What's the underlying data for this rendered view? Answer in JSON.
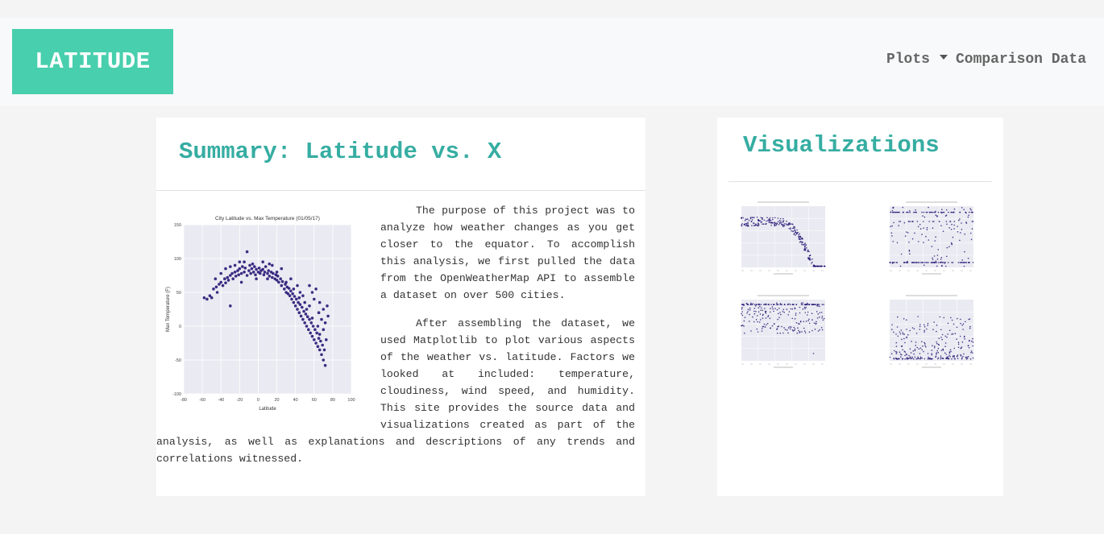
{
  "navbar": {
    "brand": "LATITUDE",
    "plots_label": "Plots",
    "comparison_label": "Comparison Data"
  },
  "summary": {
    "title": "Summary: Latitude vs. X",
    "paragraphs": [
      "The purpose of this project was to analyze how weather changes as you get closer to the equator. To accomplish this analysis, we first pulled the data from the OpenWeatherMap API to assemble a dataset on over 500 cities.",
      "After assembling the dataset, we used Matplotlib to plot various aspects of the weather vs. latitude. Factors we looked at included: temperature, cloudiness, wind speed, and humidity. This site provides the source data and visualizations created as part of the analysis, as well as explanations and descriptions of any trends and correlations witnessed."
    ]
  },
  "visualizations": {
    "title": "Visualizations"
  },
  "colors": {
    "brand": "#48cfad",
    "title": "#36ada2",
    "point": "#1c0a6e",
    "plot_bg": "#eaeaf2"
  },
  "chart_data": {
    "type": "scatter",
    "title": "City Latitude vs. Max Temperature (01/05/17)",
    "xlabel": "Latitude",
    "ylabel": "Max Temperature (F)",
    "xlim": [
      -80,
      100
    ],
    "ylim": [
      -100,
      150
    ],
    "xticks": [
      -80,
      -60,
      -40,
      -20,
      0,
      20,
      40,
      60,
      80,
      100
    ],
    "yticks": [
      -100,
      -50,
      0,
      50,
      100,
      150
    ],
    "points": [
      [
        -55,
        40
      ],
      [
        -52,
        45
      ],
      [
        -50,
        42
      ],
      [
        -48,
        55
      ],
      [
        -45,
        58
      ],
      [
        -44,
        50
      ],
      [
        -42,
        62
      ],
      [
        -40,
        65
      ],
      [
        -38,
        60
      ],
      [
        -36,
        70
      ],
      [
        -35,
        64
      ],
      [
        -33,
        72
      ],
      [
        -32,
        68
      ],
      [
        -30,
        75
      ],
      [
        -30,
        30
      ],
      [
        -28,
        78
      ],
      [
        -27,
        70
      ],
      [
        -25,
        80
      ],
      [
        -24,
        74
      ],
      [
        -22,
        82
      ],
      [
        -21,
        76
      ],
      [
        -20,
        85
      ],
      [
        -20,
        95
      ],
      [
        -18,
        78
      ],
      [
        -17,
        88
      ],
      [
        -15,
        80
      ],
      [
        -14,
        86
      ],
      [
        -12,
        75
      ],
      [
        -12,
        110
      ],
      [
        -10,
        82
      ],
      [
        -9,
        90
      ],
      [
        -8,
        78
      ],
      [
        -7,
        85
      ],
      [
        -5,
        80
      ],
      [
        -4,
        88
      ],
      [
        -3,
        76
      ],
      [
        -2,
        84
      ],
      [
        0,
        80
      ],
      [
        1,
        86
      ],
      [
        2,
        78
      ],
      [
        3,
        82
      ],
      [
        5,
        84
      ],
      [
        6,
        76
      ],
      [
        7,
        80
      ],
      [
        8,
        88
      ],
      [
        10,
        78
      ],
      [
        11,
        82
      ],
      [
        12,
        74
      ],
      [
        14,
        80
      ],
      [
        15,
        72
      ],
      [
        16,
        78
      ],
      [
        18,
        70
      ],
      [
        19,
        76
      ],
      [
        20,
        68
      ],
      [
        21,
        74
      ],
      [
        22,
        65
      ],
      [
        24,
        70
      ],
      [
        25,
        60
      ],
      [
        26,
        66
      ],
      [
        28,
        55
      ],
      [
        29,
        62
      ],
      [
        30,
        50
      ],
      [
        31,
        58
      ],
      [
        32,
        48
      ],
      [
        33,
        56
      ],
      [
        34,
        45
      ],
      [
        35,
        52
      ],
      [
        36,
        40
      ],
      [
        37,
        48
      ],
      [
        38,
        35
      ],
      [
        39,
        44
      ],
      [
        40,
        30
      ],
      [
        41,
        40
      ],
      [
        42,
        25
      ],
      [
        43,
        35
      ],
      [
        44,
        20
      ],
      [
        45,
        32
      ],
      [
        46,
        15
      ],
      [
        47,
        28
      ],
      [
        48,
        10
      ],
      [
        49,
        22
      ],
      [
        50,
        5
      ],
      [
        51,
        18
      ],
      [
        52,
        0
      ],
      [
        53,
        14
      ],
      [
        54,
        -5
      ],
      [
        55,
        10
      ],
      [
        56,
        -10
      ],
      [
        57,
        5
      ],
      [
        58,
        -15
      ],
      [
        59,
        0
      ],
      [
        60,
        -20
      ],
      [
        61,
        -5
      ],
      [
        62,
        -25
      ],
      [
        63,
        -10
      ],
      [
        64,
        -30
      ],
      [
        65,
        -18
      ],
      [
        66,
        -35
      ],
      [
        67,
        -22
      ],
      [
        68,
        -42
      ],
      [
        69,
        -28
      ],
      [
        70,
        -50
      ],
      [
        71,
        -35
      ],
      [
        72,
        -58
      ],
      [
        65,
        20
      ],
      [
        68,
        10
      ],
      [
        70,
        25
      ],
      [
        72,
        5
      ],
      [
        74,
        30
      ],
      [
        60,
        40
      ],
      [
        62,
        55
      ],
      [
        55,
        60
      ],
      [
        50,
        35
      ],
      [
        45,
        50
      ],
      [
        -35,
        85
      ],
      [
        -40,
        78
      ],
      [
        -25,
        90
      ],
      [
        -15,
        95
      ],
      [
        5,
        95
      ],
      [
        15,
        90
      ],
      [
        25,
        85
      ],
      [
        35,
        70
      ],
      [
        42,
        60
      ],
      [
        48,
        45
      ],
      [
        55,
        30
      ],
      [
        -58,
        42
      ],
      [
        -46,
        70
      ],
      [
        -30,
        88
      ],
      [
        -6,
        92
      ],
      [
        10,
        70
      ],
      [
        20,
        80
      ],
      [
        30,
        65
      ],
      [
        38,
        55
      ],
      [
        44,
        42
      ],
      [
        52,
        25
      ],
      [
        58,
        12
      ],
      [
        64,
        0
      ],
      [
        66,
        -12
      ],
      [
        70,
        -5
      ],
      [
        73,
        -20
      ],
      [
        75,
        15
      ],
      [
        66,
        35
      ],
      [
        58,
        50
      ],
      [
        12,
        92
      ],
      [
        -2,
        70
      ],
      [
        -18,
        65
      ]
    ]
  }
}
